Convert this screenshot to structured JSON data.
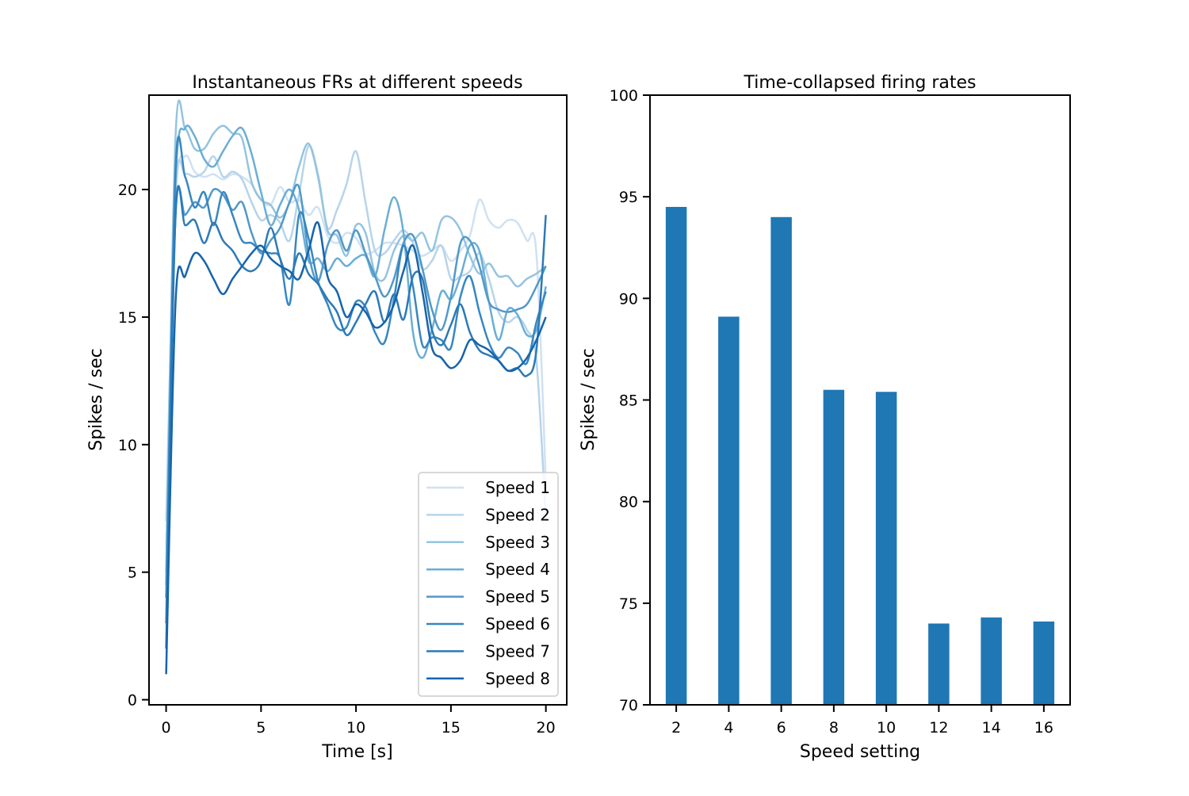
{
  "chart_data": [
    {
      "type": "line",
      "title": "Instantaneous FRs at different speeds",
      "xlabel": "Time [s]",
      "ylabel": "Spikes / sec",
      "xlim": [
        -0.9,
        21.1
      ],
      "ylim": [
        -0.2,
        23.7
      ],
      "xticks": [
        0,
        5,
        10,
        15,
        20
      ],
      "yticks": [
        0,
        5,
        10,
        15,
        20
      ],
      "legend_position": "lower-right",
      "x": [
        0,
        0.5,
        1,
        1.5,
        2,
        2.5,
        3,
        3.5,
        4,
        4.5,
        5,
        5.5,
        6,
        6.5,
        7,
        7.5,
        8,
        8.5,
        9,
        9.5,
        10,
        10.5,
        11,
        11.5,
        12,
        12.5,
        13,
        13.5,
        14,
        14.5,
        15,
        15.5,
        16,
        16.5,
        17,
        17.5,
        18,
        18.5,
        19,
        19.5,
        20
      ],
      "series": [
        {
          "name": "Speed 1",
          "color": "#d0e1f2",
          "values": [
            6,
            19.5,
            21.3,
            20.7,
            20.5,
            20.6,
            20.4,
            20.6,
            20.5,
            20.2,
            19.6,
            19.4,
            20.1,
            19.5,
            19.6,
            19.0,
            19.3,
            18.2,
            17.9,
            18.3,
            18.1,
            17.5,
            17.6,
            17.9,
            17.9,
            17.8,
            17.6,
            17.4,
            17.6,
            17.8,
            17.2,
            17.6,
            18.2,
            19.6,
            18.8,
            18.5,
            18.8,
            18.7,
            18.0,
            17.5,
            8.5
          ]
        },
        {
          "name": "Speed 2",
          "color": "#b7d4ea",
          "values": [
            7,
            20.0,
            20.6,
            20.5,
            20.7,
            21.3,
            20.5,
            20.7,
            20.4,
            19.5,
            18.8,
            19.0,
            18.7,
            18.0,
            19.8,
            21.7,
            20.6,
            18.5,
            19.2,
            20.2,
            21.5,
            19.5,
            17.6,
            17.5,
            18.0,
            18.4,
            17.9,
            16.9,
            17.2,
            17.8,
            16.5,
            16.6,
            16.8,
            17.5,
            16.5,
            15.2,
            14.8,
            15.0,
            14.5,
            13.3,
            7
          ]
        },
        {
          "name": "Speed 3",
          "color": "#94c4df",
          "values": [
            5,
            22.1,
            22.4,
            21.6,
            21.6,
            22.2,
            22.5,
            22.2,
            22.0,
            20.3,
            19.6,
            19.4,
            18.9,
            19.5,
            20.9,
            21.8,
            20.5,
            18.4,
            18.2,
            17.4,
            18.6,
            18.3,
            16.7,
            16.5,
            17.6,
            18.2,
            18.0,
            18.3,
            17.6,
            18.8,
            18.9,
            18.4,
            17.4,
            16.7,
            17.1,
            16.6,
            16.6,
            16.2,
            16.5,
            16.7,
            17.0
          ]
        },
        {
          "name": "Speed 4",
          "color": "#6aaed6",
          "values": [
            4.5,
            20.3,
            22.4,
            22.1,
            21.2,
            20.9,
            21.5,
            22.1,
            22.4,
            21.4,
            19.9,
            18.6,
            19.4,
            20.0,
            19.2,
            17.2,
            17.3,
            16.8,
            17.3,
            17.0,
            17.3,
            17.4,
            16.6,
            18.4,
            19.7,
            18.3,
            14.4,
            13.4,
            14.5,
            16.0,
            15.7,
            16.6,
            17.8,
            17.6,
            15.6,
            14.1,
            15.3,
            15.1,
            14.3,
            14.5,
            16.2
          ]
        },
        {
          "name": "Speed 5",
          "color": "#5199c9",
          "values": [
            4,
            19.0,
            19.0,
            19.5,
            19.3,
            20.0,
            19.8,
            19.2,
            19.5,
            18.3,
            17.5,
            18.0,
            18.5,
            19.5,
            20.1,
            17.5,
            16.4,
            17.8,
            18.4,
            17.6,
            18.4,
            17.5,
            16.6,
            15.8,
            16.5,
            17.9,
            18.2,
            16.9,
            15.3,
            14.5,
            15.8,
            17.9,
            18.0,
            17.0,
            15.6,
            15.3,
            15.2,
            15.3,
            15.5,
            16.2,
            17.0
          ]
        },
        {
          "name": "Speed 6",
          "color": "#3787c0",
          "values": [
            3,
            20.8,
            20.5,
            19.3,
            19.9,
            18.6,
            19.9,
            19.0,
            18.0,
            17.9,
            17.6,
            17.5,
            17.3,
            15.5,
            19.0,
            18.1,
            16.4,
            15.5,
            14.6,
            14.6,
            15.6,
            15.4,
            14.4,
            14.0,
            15.7,
            17.8,
            16.2,
            13.9,
            14.2,
            14.1,
            13.8,
            15.8,
            16.6,
            15.2,
            14.0,
            13.4,
            13.8,
            13.6,
            13.2,
            14.8,
            16.0
          ]
        },
        {
          "name": "Speed 7",
          "color": "#2c7ab7",
          "values": [
            2,
            19.0,
            18.6,
            18.8,
            17.9,
            18.7,
            18.0,
            17.6,
            17.0,
            16.8,
            17.2,
            18.5,
            17.3,
            16.5,
            17.5,
            16.7,
            16.3,
            15.7,
            15.2,
            14.3,
            14.8,
            15.5,
            16.0,
            14.8,
            15.9,
            14.9,
            16.6,
            16.5,
            14.5,
            13.9,
            14.7,
            15.5,
            14.4,
            13.7,
            13.5,
            13.3,
            12.9,
            13.0,
            12.7,
            13.7,
            19.0
          ]
        },
        {
          "name": "Speed 8",
          "color": "#1764ab",
          "values": [
            1,
            15.6,
            16.6,
            17.5,
            17.2,
            16.5,
            15.9,
            16.5,
            17.0,
            17.5,
            17.8,
            17.3,
            17.0,
            16.8,
            16.5,
            17.6,
            18.7,
            16.6,
            16.0,
            15.0,
            15.5,
            15.2,
            14.6,
            14.8,
            15.5,
            16.8,
            17.8,
            16.0,
            13.8,
            13.4,
            13.0,
            13.3,
            14.1,
            13.9,
            13.7,
            13.3,
            12.9,
            13.0,
            13.4,
            14.1,
            15.0
          ]
        }
      ]
    },
    {
      "type": "bar",
      "title": "Time-collapsed firing rates",
      "xlabel": "Speed setting",
      "ylabel": "Spikes / sec",
      "ylim": [
        70,
        100
      ],
      "yticks": [
        70,
        75,
        80,
        85,
        90,
        95,
        100
      ],
      "color": "#1f77b4",
      "categories": [
        "2",
        "4",
        "6",
        "8",
        "10",
        "12",
        "14",
        "16"
      ],
      "values": [
        94.5,
        89.1,
        94.0,
        85.5,
        85.4,
        74.0,
        74.3,
        74.1
      ]
    }
  ]
}
